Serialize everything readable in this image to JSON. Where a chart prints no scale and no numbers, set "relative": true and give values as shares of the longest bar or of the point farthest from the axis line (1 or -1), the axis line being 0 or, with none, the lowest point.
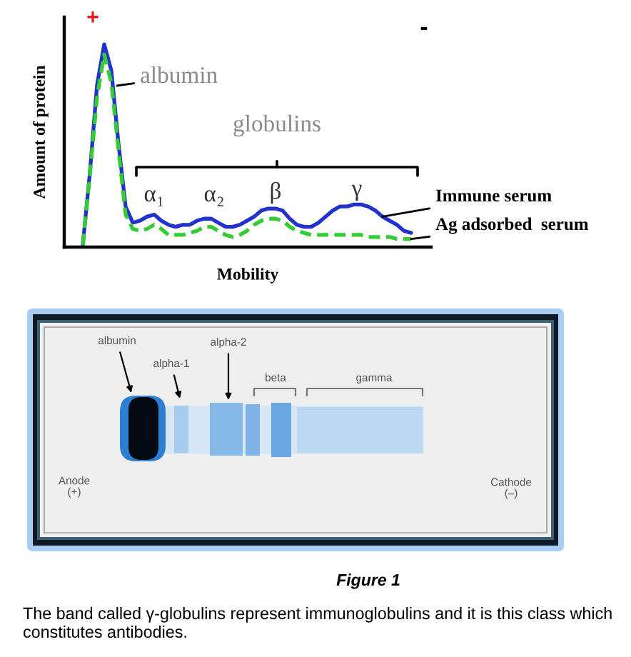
{
  "chart_data": {
    "type": "line",
    "relative": true,
    "xlabel": "Mobility",
    "ylabel": "Amount of protein",
    "categories": [
      null,
      null,
      null,
      null,
      null,
      null,
      null,
      null,
      null,
      null,
      null,
      null,
      null,
      null,
      null,
      null,
      null,
      null,
      null,
      null,
      null,
      null,
      null,
      null,
      null,
      null,
      null,
      null,
      null,
      null,
      null,
      null,
      null,
      null,
      null,
      null,
      null,
      null,
      null,
      null,
      null,
      null,
      null,
      null,
      null,
      null,
      null
    ],
    "series": [
      {
        "name": "Immune serum",
        "color": "#2233cc",
        "line_style": "solid",
        "values": [
          0.01,
          0.37,
          0.8,
          1.0,
          0.87,
          0.51,
          0.2,
          0.12,
          0.13,
          0.15,
          0.16,
          0.13,
          0.11,
          0.1,
          0.11,
          0.11,
          0.13,
          0.14,
          0.14,
          0.12,
          0.1,
          0.1,
          0.11,
          0.13,
          0.15,
          0.18,
          0.19,
          0.19,
          0.18,
          0.14,
          0.11,
          0.1,
          0.1,
          0.12,
          0.15,
          0.18,
          0.2,
          0.2,
          0.21,
          0.21,
          0.2,
          0.18,
          0.15,
          0.13,
          0.11,
          0.08,
          0.07
        ]
      },
      {
        "name": "Ag adsorbed  serum",
        "color": "#33cc33",
        "line_style": "dashed",
        "values": [
          0.01,
          0.36,
          0.74,
          0.95,
          0.81,
          0.48,
          0.16,
          0.09,
          0.08,
          0.09,
          0.11,
          0.09,
          0.06,
          0.06,
          0.06,
          0.07,
          0.08,
          0.1,
          0.1,
          0.08,
          0.06,
          0.05,
          0.06,
          0.08,
          0.11,
          0.13,
          0.14,
          0.14,
          0.13,
          0.1,
          0.08,
          0.07,
          0.06,
          0.06,
          0.06,
          0.06,
          0.06,
          0.06,
          0.06,
          0.06,
          0.05,
          0.05,
          0.05,
          0.05,
          0.04,
          0.04,
          0.04
        ]
      }
    ],
    "annotations": [
      "+",
      "-",
      "albumin",
      "globulins",
      "α₁",
      "α₂",
      "β",
      "γ",
      "albumin",
      "alpha-1",
      "alpha-2",
      "beta",
      "gamma",
      "Anode\n(+)",
      "Cathode\n(–)",
      "Figure 1",
      "The band called γ-globulins represent immunoglobulins and it is this class which constitutes antibodies."
    ]
  }
}
